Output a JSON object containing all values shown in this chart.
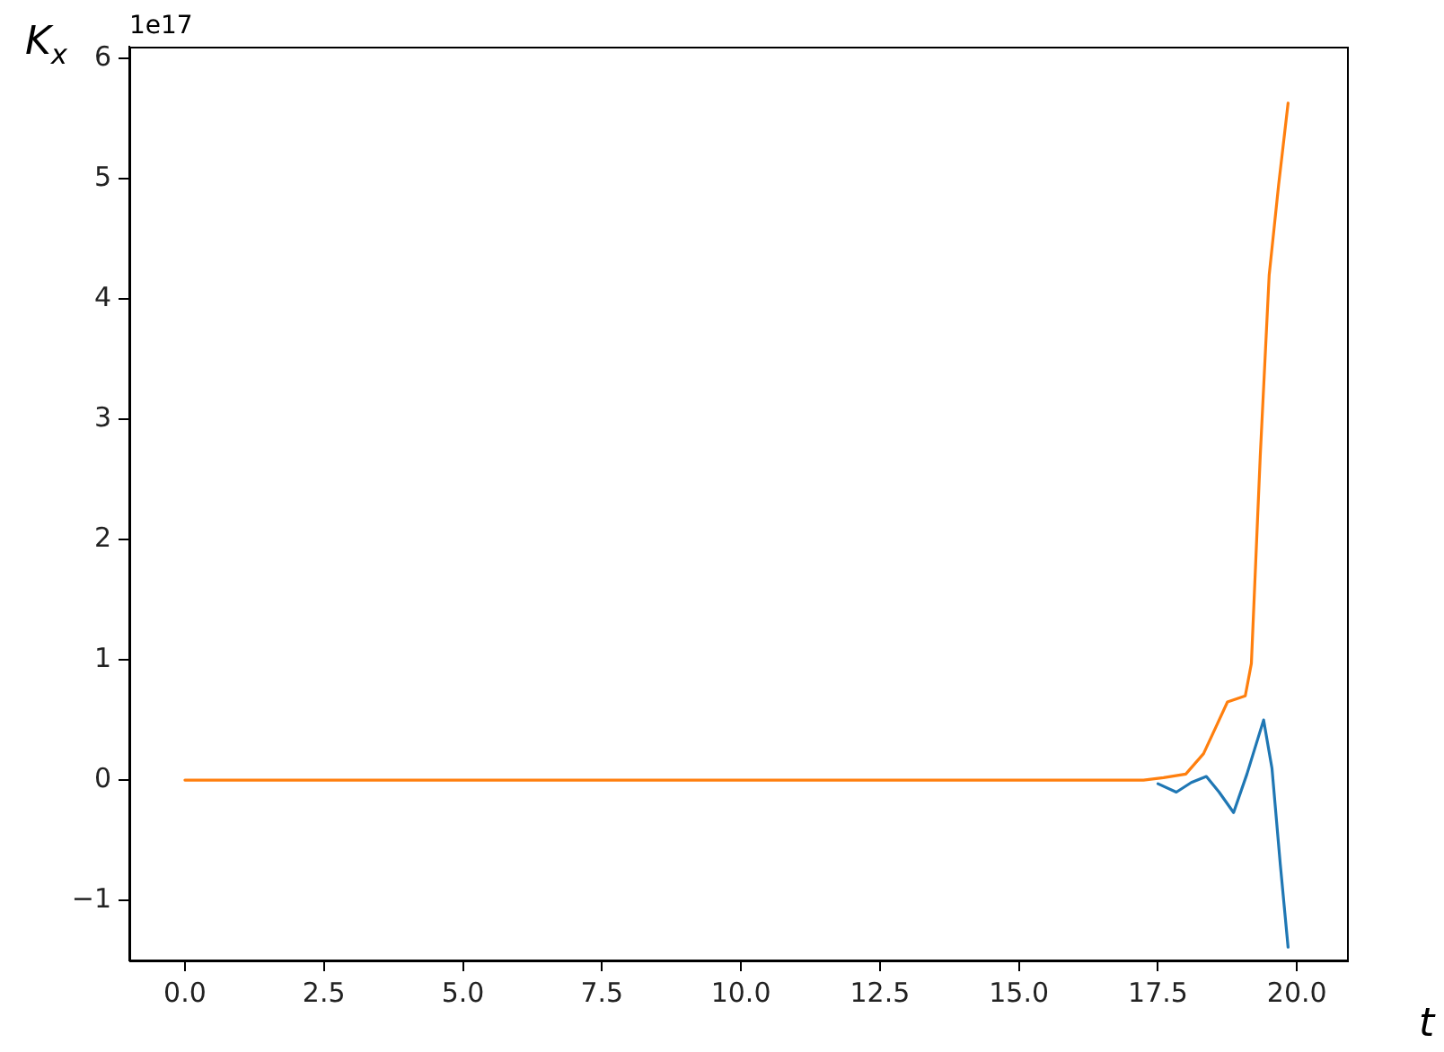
{
  "chart_data": {
    "type": "line",
    "xlabel": "t",
    "ylabel": "K$_{x}$",
    "annotations": [
      "1e17"
    ],
    "xlim": [
      -1,
      20.9
    ],
    "ylim": [
      -1.5,
      6.1
    ],
    "xticks": [
      {
        "value": 0,
        "label": "0.0"
      },
      {
        "value": 2.5,
        "label": "2.5"
      },
      {
        "value": 5,
        "label": "5.0"
      },
      {
        "value": 7.5,
        "label": "7.5"
      },
      {
        "value": 10,
        "label": "10.0"
      },
      {
        "value": 12.5,
        "label": "12.5"
      },
      {
        "value": 15,
        "label": "15.0"
      },
      {
        "value": 17.5,
        "label": "17.5"
      },
      {
        "value": 20,
        "label": "20.0"
      }
    ],
    "yticks": [
      {
        "value": -1,
        "label": "−1"
      },
      0,
      1,
      2,
      3,
      4,
      5,
      6
    ],
    "grid": false,
    "legend": false,
    "marker": "none",
    "line_style": "solid",
    "series": [
      {
        "color": "#1f77b4",
        "x": [
          17.5,
          17.83,
          18.1,
          18.37,
          18.6,
          18.86,
          19.1,
          19.4,
          19.55,
          19.7,
          19.84
        ],
        "values": [
          -0.03,
          -0.1,
          -0.02,
          0.03,
          -0.1,
          -0.27,
          0.05,
          0.5,
          0.1,
          -0.7,
          -1.39
        ]
      },
      {
        "color": "#ff7f0e",
        "x": [
          0,
          5,
          10,
          15,
          17.24,
          17.6,
          18.0,
          18.32,
          18.55,
          18.75,
          19.07,
          19.18,
          19.34,
          19.5,
          19.67,
          19.84
        ],
        "values": [
          0,
          0,
          0,
          0,
          0,
          0.02,
          0.05,
          0.22,
          0.45,
          0.65,
          0.7,
          0.97,
          2.7,
          4.2,
          4.95,
          5.63
        ]
      }
    ]
  }
}
